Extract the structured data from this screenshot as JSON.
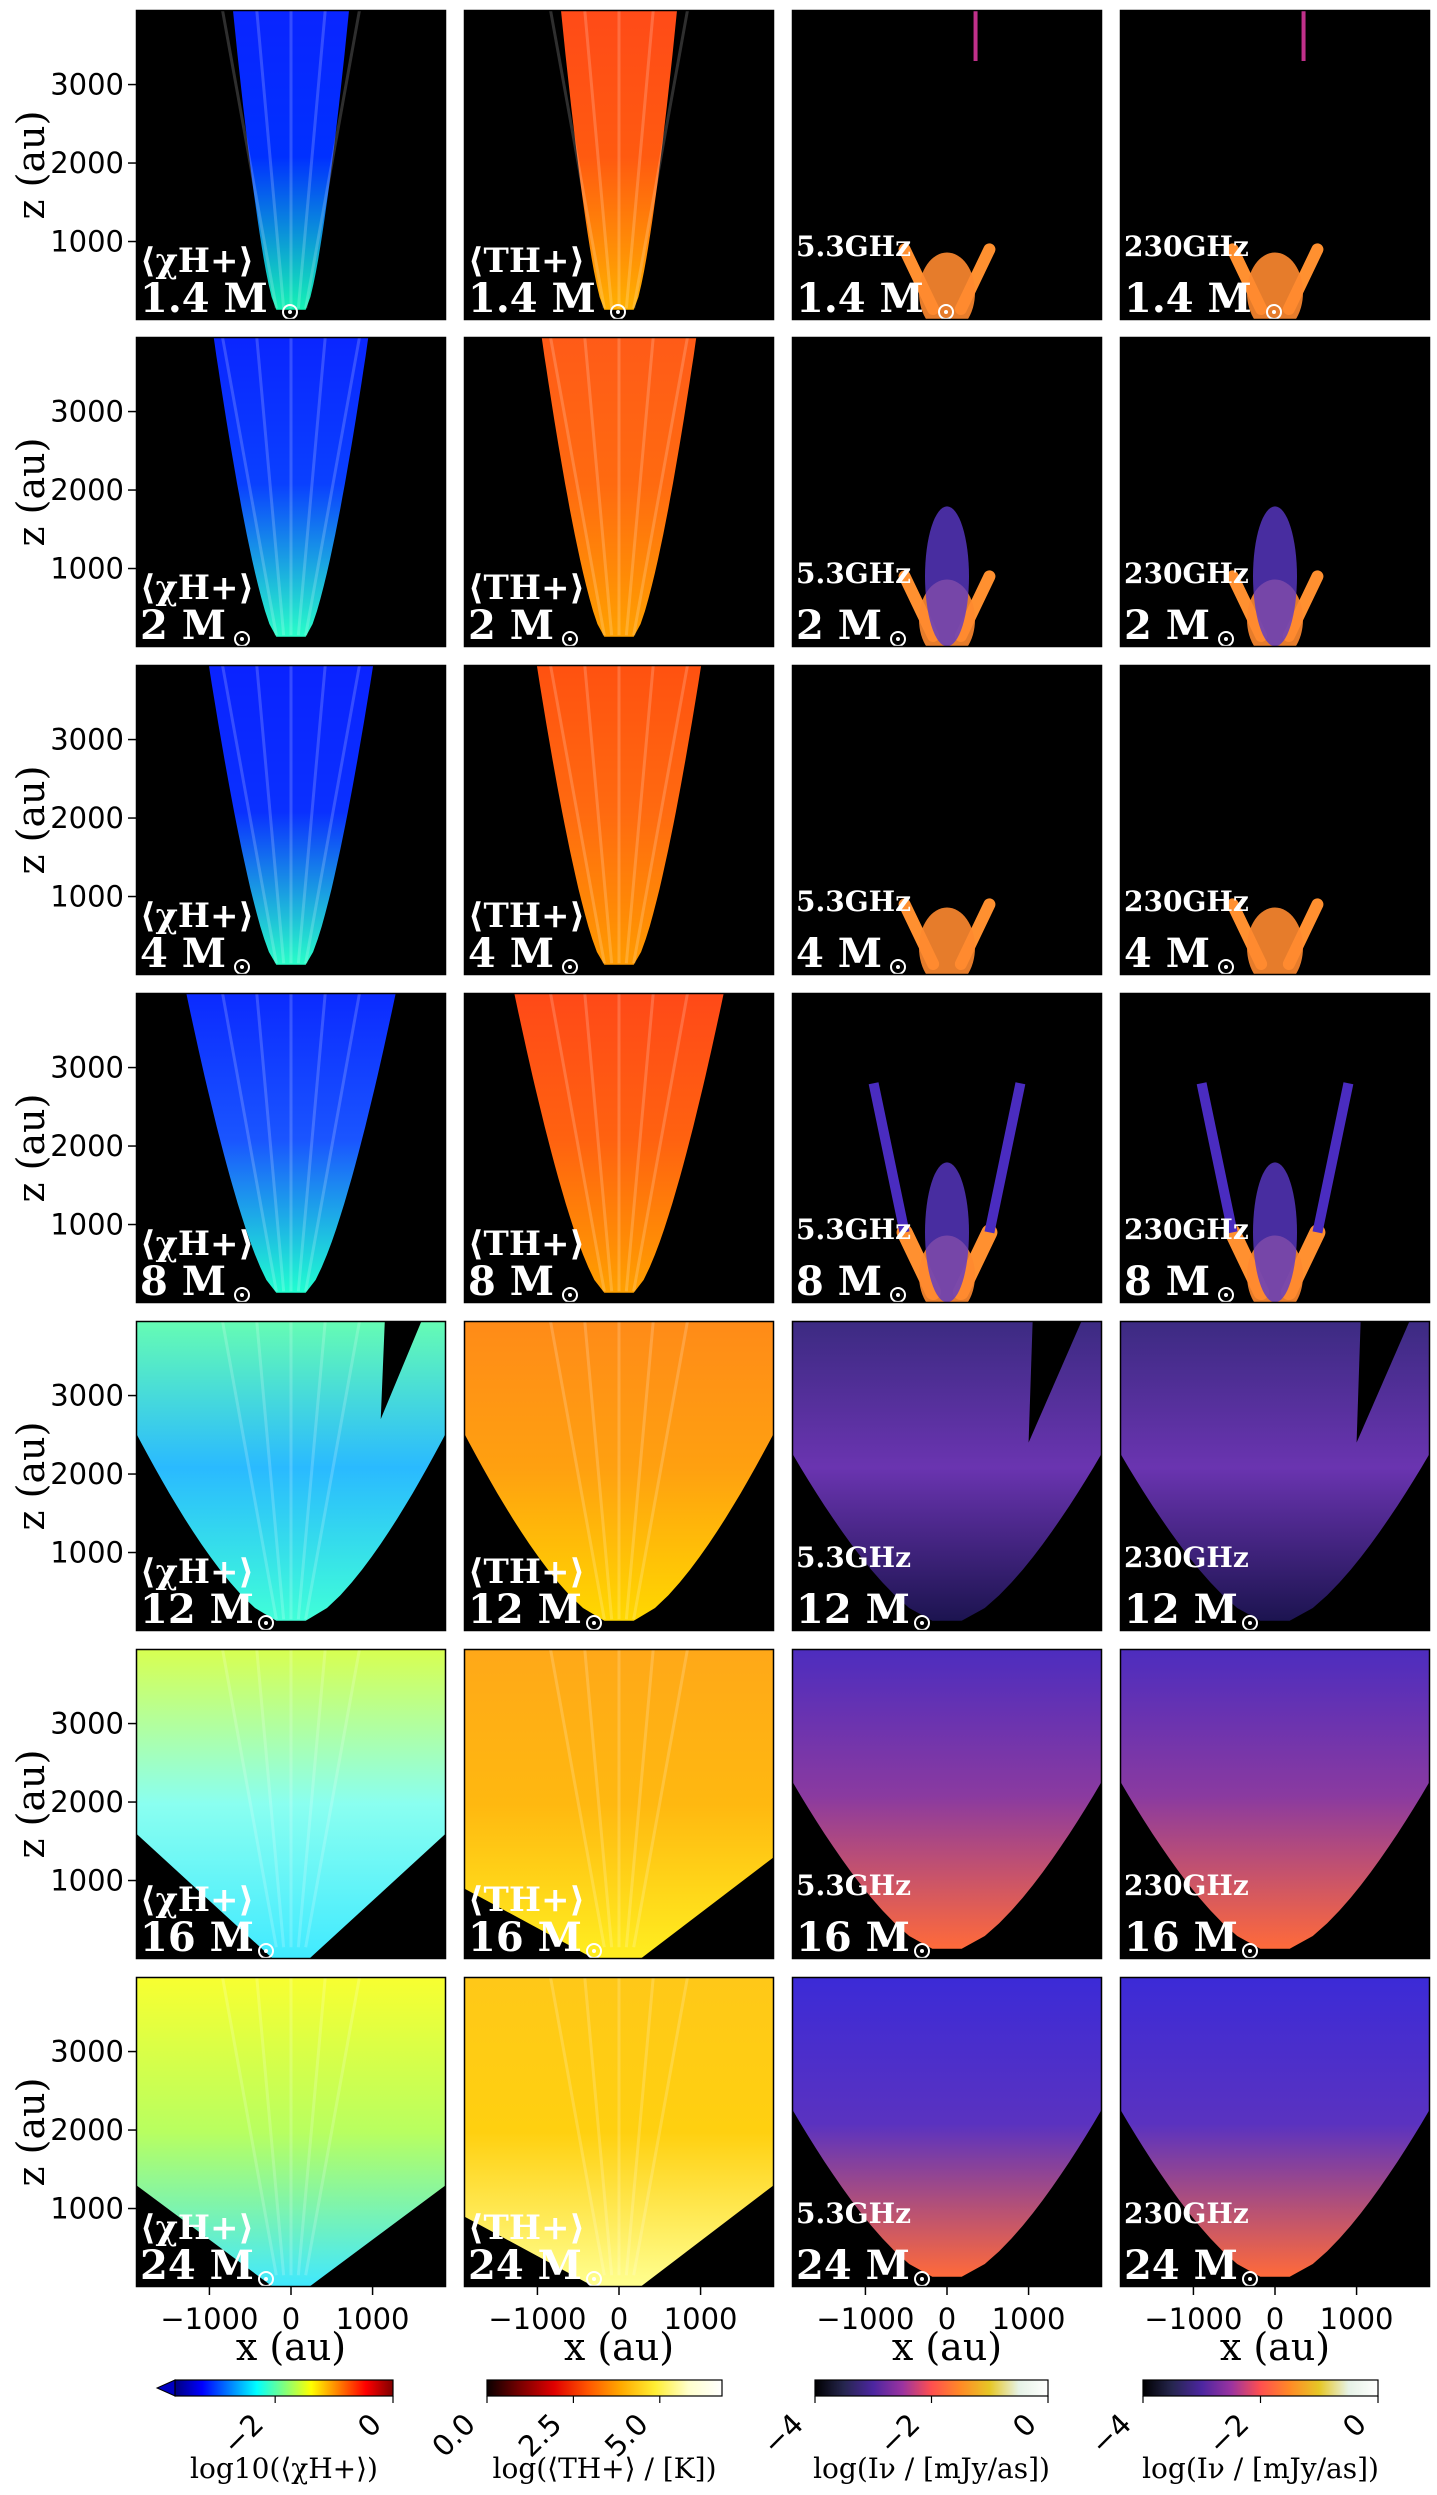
{
  "chart_data": {
    "type": "heatmap",
    "title": "",
    "masses": [
      "1.4",
      "2",
      "4",
      "8",
      "12",
      "16",
      "24"
    ],
    "mass_unit": "M",
    "columns": [
      {
        "quantity": "log10(<chi_H+>)",
        "panel_label": "⟨χH+⟩",
        "colormap": "jet",
        "colorbar": {
          "label": "log10(⟨χH+⟩)",
          "ticks": [
            "−2",
            "0"
          ],
          "range": [
            -3.7,
            0
          ]
        }
      },
      {
        "quantity": "log(<T_H+>) / [K]",
        "panel_label": "⟨TH+⟩",
        "colormap": "hot",
        "colorbar": {
          "label": "log(⟨TH+⟩ / [K])",
          "ticks": [
            "0.0",
            "2.5",
            "5.0"
          ],
          "range": [
            0,
            6.8
          ]
        }
      },
      {
        "quantity": "log(I_nu) / [mJy/as]",
        "panel_label": "5.3GHz",
        "frequency": "5.3GHz",
        "colormap": "CMRmap",
        "colorbar": {
          "label": "log(Iν / [mJy/as])",
          "ticks": [
            "−4",
            "−2",
            "0"
          ],
          "range": [
            -4,
            0
          ]
        }
      },
      {
        "quantity": "log(I_nu) / [mJy/as]",
        "panel_label": "230GHz",
        "frequency": "230GHz",
        "colormap": "CMRmap",
        "colorbar": {
          "label": "log(Iν / [mJy/as])",
          "ticks": [
            "−4",
            "−2",
            "0"
          ],
          "range": [
            -4,
            0
          ]
        }
      }
    ],
    "xlabel": "x (au)",
    "ylabel": "z (au)",
    "xlim": [
      -1900,
      1900
    ],
    "ylim": [
      0,
      3950
    ],
    "xticks": [
      -1000,
      0,
      1000
    ],
    "xtick_labels": [
      "−1000",
      "0",
      "1000"
    ],
    "yticks": [
      1000,
      2000,
      3000
    ],
    "ytick_labels": [
      "1000",
      "2000",
      "3000"
    ],
    "ionized_half_width_at_top_au": [
      720,
      960,
      1020,
      1300,
      1900,
      1900,
      1900
    ],
    "radio_extent_au": [
      900,
      1400,
      900,
      3300,
      3900,
      3900,
      3900
    ]
  }
}
